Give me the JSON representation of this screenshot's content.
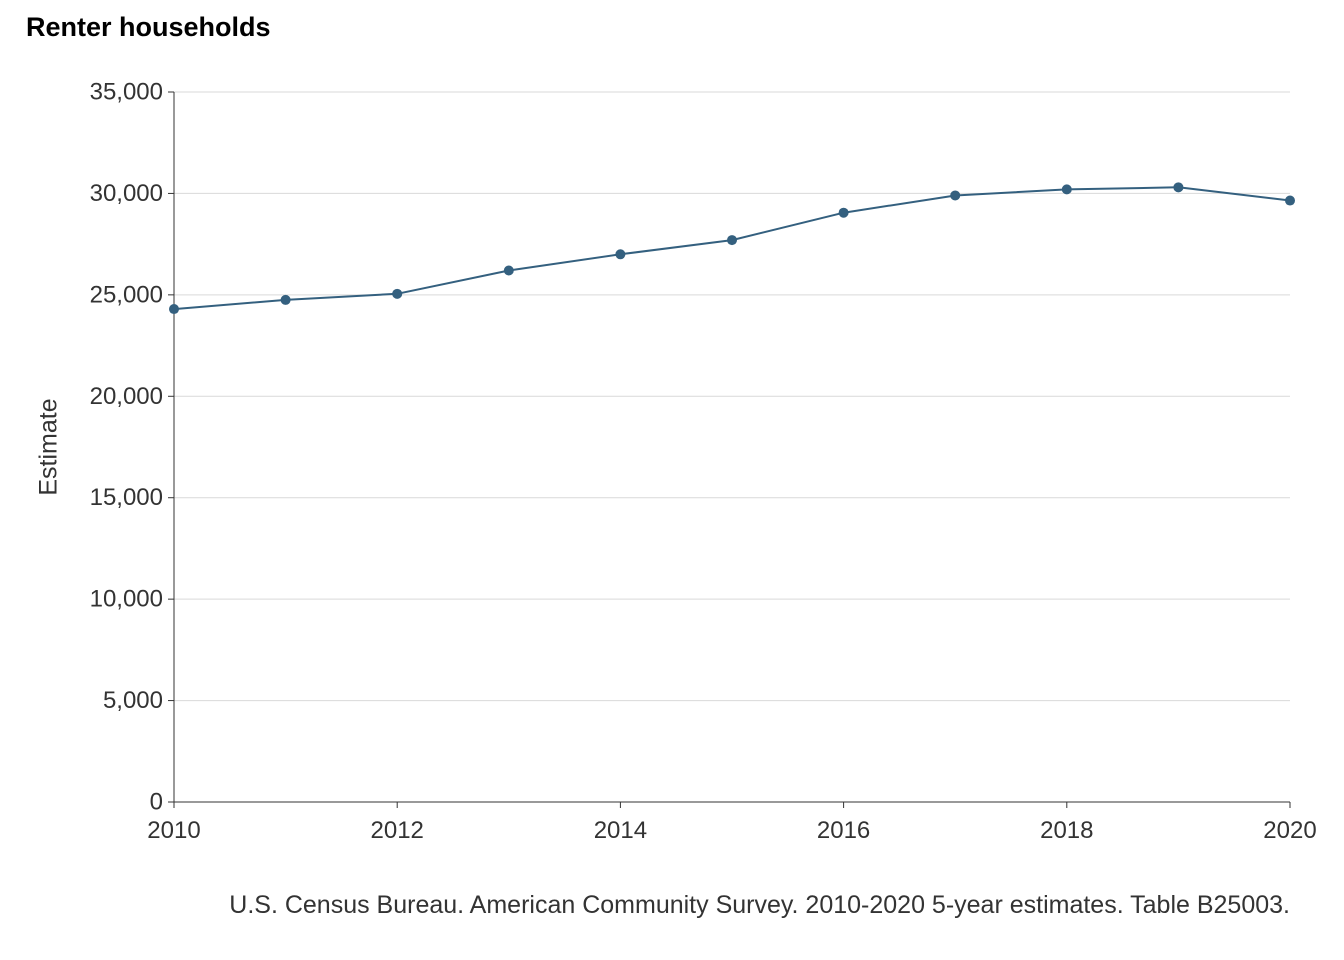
{
  "chart_data": {
    "type": "line",
    "title": "Renter households",
    "xlabel": "",
    "ylabel": "Estimate",
    "caption": "U.S. Census Bureau. American Community Survey. 2010-2020 5-year estimates. Table B25003.",
    "x": [
      2010,
      2011,
      2012,
      2013,
      2014,
      2015,
      2016,
      2017,
      2018,
      2019,
      2020
    ],
    "series": [
      {
        "values": [
          24300,
          24750,
          25050,
          26200,
          27000,
          27700,
          29050,
          29900,
          30200,
          30300,
          29650
        ]
      }
    ],
    "xlim": [
      2010,
      2020
    ],
    "ylim": [
      0,
      35000
    ],
    "x_ticks": [
      2010,
      2012,
      2014,
      2016,
      2018,
      2020
    ],
    "x_tick_labels": [
      "2010",
      "2012",
      "2014",
      "2016",
      "2018",
      "2020"
    ],
    "y_ticks": [
      0,
      5000,
      10000,
      15000,
      20000,
      25000,
      30000,
      35000
    ],
    "y_tick_labels": [
      "0",
      "5,000",
      "10,000",
      "15,000",
      "20,000",
      "25,000",
      "30,000",
      "35,000"
    ],
    "grid": true,
    "line_color": "#34607f"
  }
}
